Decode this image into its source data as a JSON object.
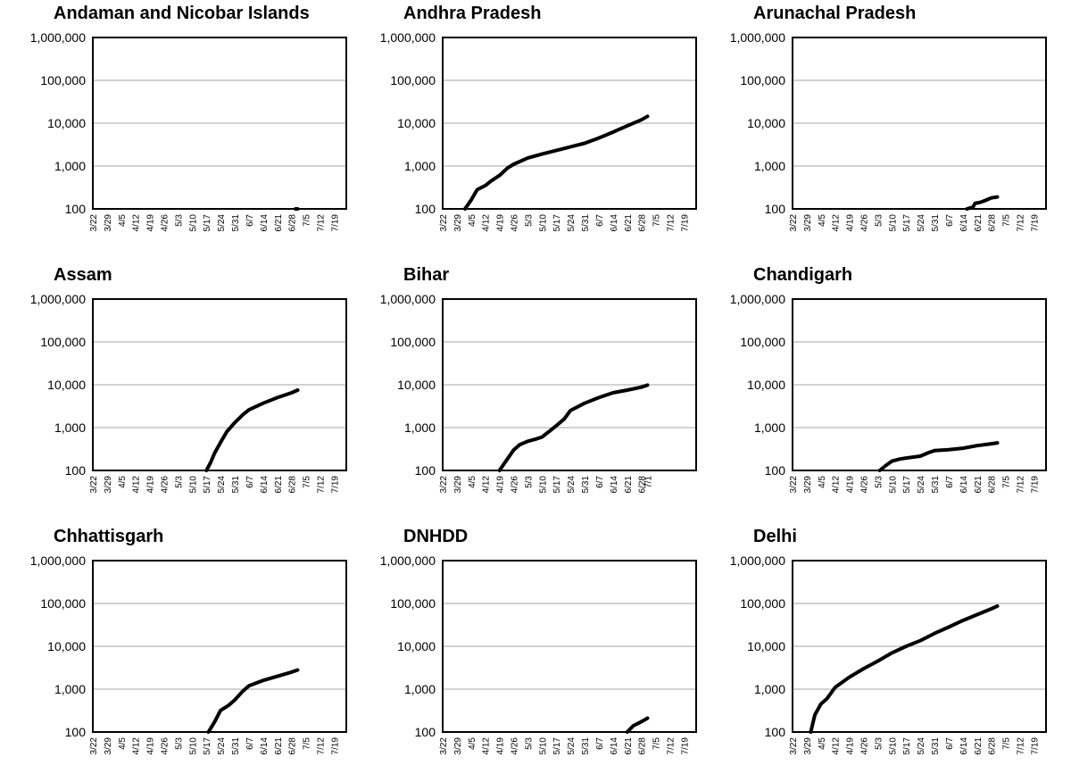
{
  "chart_data": [
    {
      "type": "line",
      "title": "Andaman and Nicobar Islands",
      "y_scale": "log",
      "ylim": [
        100,
        1000000
      ],
      "y_ticks": [
        "1,000,000",
        "100,000",
        "10,000",
        "1,000",
        "100"
      ],
      "x_ticks": [
        "3/22",
        "3/29",
        "4/5",
        "4/12",
        "4/19",
        "4/26",
        "5/3",
        "5/10",
        "5/17",
        "5/24",
        "5/31",
        "6/7",
        "6/14",
        "6/21",
        "6/28",
        "7/5",
        "7/12",
        "7/19"
      ],
      "series": [
        {
          "x": [
            "6/30",
            "7/1"
          ],
          "y": [
            100,
            100
          ]
        }
      ]
    },
    {
      "type": "line",
      "title": "Andhra Pradesh",
      "y_scale": "log",
      "ylim": [
        100,
        1000000
      ],
      "y_ticks": [
        "1,000,000",
        "100,000",
        "10,000",
        "1,000",
        "100"
      ],
      "x_ticks": [
        "3/22",
        "3/29",
        "4/5",
        "4/12",
        "4/19",
        "4/26",
        "5/3",
        "5/10",
        "5/17",
        "5/24",
        "5/31",
        "6/7",
        "6/14",
        "6/21",
        "6/28",
        "7/5",
        "7/12",
        "7/19"
      ],
      "series": [
        {
          "x": [
            "4/2",
            "4/5",
            "4/8",
            "4/12",
            "4/15",
            "4/19",
            "4/23",
            "4/26",
            "5/3",
            "5/10",
            "5/17",
            "5/24",
            "5/31",
            "6/7",
            "6/14",
            "6/21",
            "6/28",
            "7/1"
          ],
          "y": [
            100,
            160,
            280,
            350,
            450,
            600,
            900,
            1100,
            1550,
            1900,
            2300,
            2800,
            3400,
            4500,
            6200,
            8700,
            12000,
            14500
          ]
        }
      ]
    },
    {
      "type": "line",
      "title": "Arunachal Pradesh",
      "y_scale": "log",
      "ylim": [
        100,
        1000000
      ],
      "y_ticks": [
        "1,000,000",
        "100,000",
        "10,000",
        "1,000",
        "100"
      ],
      "x_ticks": [
        "3/22",
        "3/29",
        "4/5",
        "4/12",
        "4/19",
        "4/26",
        "5/3",
        "5/10",
        "5/17",
        "5/24",
        "5/31",
        "6/7",
        "6/14",
        "6/21",
        "6/28",
        "7/5",
        "7/12",
        "7/19"
      ],
      "series": [
        {
          "x": [
            "6/16",
            "6/19",
            "6/20",
            "6/22",
            "6/24",
            "6/26",
            "6/28",
            "7/1"
          ],
          "y": [
            100,
            110,
            135,
            140,
            150,
            165,
            180,
            190
          ]
        }
      ]
    },
    {
      "type": "line",
      "title": "Assam",
      "y_scale": "log",
      "ylim": [
        100,
        1000000
      ],
      "y_ticks": [
        "1,000,000",
        "100,000",
        "10,000",
        "1,000",
        "100"
      ],
      "x_ticks": [
        "3/22",
        "3/29",
        "4/5",
        "4/12",
        "4/19",
        "4/26",
        "5/3",
        "5/10",
        "5/17",
        "5/24",
        "5/31",
        "6/7",
        "6/14",
        "6/21",
        "6/28",
        "7/5",
        "7/12",
        "7/19"
      ],
      "series": [
        {
          "x": [
            "5/17",
            "5/19",
            "5/21",
            "5/24",
            "5/27",
            "5/31",
            "6/4",
            "6/7",
            "6/14",
            "6/21",
            "6/28",
            "7/1"
          ],
          "y": [
            100,
            150,
            250,
            450,
            800,
            1300,
            2000,
            2600,
            3700,
            5000,
            6500,
            7500
          ]
        }
      ]
    },
    {
      "type": "line",
      "title": "Bihar",
      "y_scale": "log",
      "ylim": [
        100,
        1000000
      ],
      "y_ticks": [
        "1,000,000",
        "100,000",
        "10,000",
        "1,000",
        "100"
      ],
      "x_ticks": [
        "3/22",
        "3/29",
        "4/5",
        "4/12",
        "4/19",
        "4/26",
        "5/3",
        "5/10",
        "5/17",
        "5/24",
        "5/31",
        "6/7",
        "6/14",
        "6/21",
        "6/28",
        "7/1"
      ],
      "series": [
        {
          "x": [
            "4/19",
            "4/22",
            "4/26",
            "4/29",
            "5/3",
            "5/7",
            "5/10",
            "5/14",
            "5/17",
            "5/21",
            "5/24",
            "5/31",
            "6/7",
            "6/14",
            "6/21",
            "6/28",
            "7/1"
          ],
          "y": [
            100,
            160,
            300,
            400,
            480,
            540,
            600,
            850,
            1100,
            1600,
            2500,
            3700,
            5000,
            6500,
            7500,
            8800,
            9800
          ]
        }
      ]
    },
    {
      "type": "line",
      "title": "Chandigarh",
      "y_scale": "log",
      "ylim": [
        100,
        1000000
      ],
      "y_ticks": [
        "1,000,000",
        "100,000",
        "10,000",
        "1,000",
        "100"
      ],
      "x_ticks": [
        "3/22",
        "3/29",
        "4/5",
        "4/12",
        "4/19",
        "4/26",
        "5/3",
        "5/10",
        "5/17",
        "5/24",
        "5/31",
        "6/7",
        "6/14",
        "6/21",
        "6/28",
        "7/5",
        "7/12",
        "7/19"
      ],
      "series": [
        {
          "x": [
            "5/4",
            "5/7",
            "5/10",
            "5/14",
            "5/17",
            "5/24",
            "5/28",
            "5/31",
            "6/7",
            "6/14",
            "6/21",
            "6/28",
            "7/1"
          ],
          "y": [
            100,
            130,
            165,
            185,
            195,
            215,
            260,
            290,
            305,
            330,
            380,
            420,
            440
          ]
        }
      ]
    },
    {
      "type": "line",
      "title": "Chhattisgarh",
      "y_scale": "log",
      "ylim": [
        100,
        1000000
      ],
      "y_ticks": [
        "1,000,000",
        "100,000",
        "10,000",
        "1,000",
        "100"
      ],
      "x_ticks": [
        "3/22",
        "3/29",
        "4/5",
        "4/12",
        "4/19",
        "4/26",
        "5/3",
        "5/10",
        "5/17",
        "5/24",
        "5/31",
        "6/7",
        "6/14",
        "6/21",
        "6/28",
        "7/5",
        "7/12",
        "7/19"
      ],
      "series": [
        {
          "x": [
            "5/18",
            "5/21",
            "5/24",
            "5/28",
            "5/31",
            "6/4",
            "6/7",
            "6/14",
            "6/21",
            "6/28",
            "7/1"
          ],
          "y": [
            100,
            170,
            320,
            420,
            560,
            900,
            1200,
            1600,
            2000,
            2500,
            2800
          ]
        }
      ]
    },
    {
      "type": "line",
      "title": "DNHDD",
      "y_scale": "log",
      "ylim": [
        100,
        1000000
      ],
      "y_ticks": [
        "1,000,000",
        "100,000",
        "10,000",
        "1,000",
        "100"
      ],
      "x_ticks": [
        "3/22",
        "3/29",
        "4/5",
        "4/12",
        "4/19",
        "4/26",
        "5/3",
        "5/10",
        "5/17",
        "5/24",
        "5/31",
        "6/7",
        "6/14",
        "6/21",
        "6/28",
        "7/5",
        "7/12",
        "7/19"
      ],
      "series": [
        {
          "x": [
            "6/21",
            "6/24",
            "6/27",
            "6/29",
            "7/1"
          ],
          "y": [
            100,
            140,
            165,
            185,
            210
          ]
        }
      ]
    },
    {
      "type": "line",
      "title": "Delhi",
      "y_scale": "log",
      "ylim": [
        100,
        1000000
      ],
      "y_ticks": [
        "1,000,000",
        "100,000",
        "10,000",
        "1,000",
        "100"
      ],
      "x_ticks": [
        "3/22",
        "3/29",
        "4/5",
        "4/12",
        "4/19",
        "4/26",
        "5/3",
        "5/10",
        "5/17",
        "5/24",
        "5/31",
        "6/7",
        "6/14",
        "6/21",
        "6/28",
        "7/5",
        "7/12",
        "7/19"
      ],
      "series": [
        {
          "x": [
            "3/31",
            "4/2",
            "4/5",
            "4/8",
            "4/12",
            "4/19",
            "4/26",
            "5/3",
            "5/10",
            "5/17",
            "5/24",
            "5/31",
            "6/7",
            "6/14",
            "6/21",
            "6/28",
            "7/1"
          ],
          "y": [
            100,
            250,
            450,
            600,
            1100,
            1900,
            3000,
            4500,
            7000,
            10000,
            13500,
            20000,
            28000,
            40000,
            55000,
            75000,
            87000
          ]
        }
      ]
    }
  ]
}
